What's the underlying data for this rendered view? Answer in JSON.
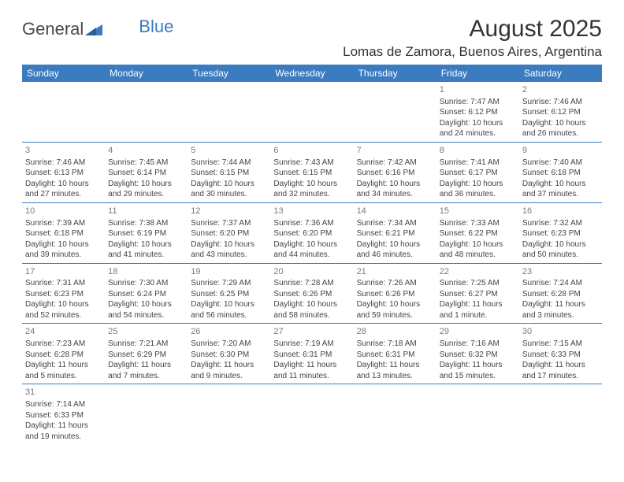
{
  "logo": {
    "textA": "General",
    "textB": "Blue"
  },
  "title": "August 2025",
  "location": "Lomas de Zamora, Buenos Aires, Argentina",
  "colors": {
    "headerBg": "#3b7bbf",
    "text": "#333333",
    "dayNum": "#7a7a7a"
  },
  "weekdays": [
    "Sunday",
    "Monday",
    "Tuesday",
    "Wednesday",
    "Thursday",
    "Friday",
    "Saturday"
  ],
  "startOffset": 5,
  "days": [
    {
      "n": "1",
      "sr": "7:47 AM",
      "ss": "6:12 PM",
      "dl": "10 hours and 24 minutes."
    },
    {
      "n": "2",
      "sr": "7:46 AM",
      "ss": "6:12 PM",
      "dl": "10 hours and 26 minutes."
    },
    {
      "n": "3",
      "sr": "7:46 AM",
      "ss": "6:13 PM",
      "dl": "10 hours and 27 minutes."
    },
    {
      "n": "4",
      "sr": "7:45 AM",
      "ss": "6:14 PM",
      "dl": "10 hours and 29 minutes."
    },
    {
      "n": "5",
      "sr": "7:44 AM",
      "ss": "6:15 PM",
      "dl": "10 hours and 30 minutes."
    },
    {
      "n": "6",
      "sr": "7:43 AM",
      "ss": "6:15 PM",
      "dl": "10 hours and 32 minutes."
    },
    {
      "n": "7",
      "sr": "7:42 AM",
      "ss": "6:16 PM",
      "dl": "10 hours and 34 minutes."
    },
    {
      "n": "8",
      "sr": "7:41 AM",
      "ss": "6:17 PM",
      "dl": "10 hours and 36 minutes."
    },
    {
      "n": "9",
      "sr": "7:40 AM",
      "ss": "6:18 PM",
      "dl": "10 hours and 37 minutes."
    },
    {
      "n": "10",
      "sr": "7:39 AM",
      "ss": "6:18 PM",
      "dl": "10 hours and 39 minutes."
    },
    {
      "n": "11",
      "sr": "7:38 AM",
      "ss": "6:19 PM",
      "dl": "10 hours and 41 minutes."
    },
    {
      "n": "12",
      "sr": "7:37 AM",
      "ss": "6:20 PM",
      "dl": "10 hours and 43 minutes."
    },
    {
      "n": "13",
      "sr": "7:36 AM",
      "ss": "6:20 PM",
      "dl": "10 hours and 44 minutes."
    },
    {
      "n": "14",
      "sr": "7:34 AM",
      "ss": "6:21 PM",
      "dl": "10 hours and 46 minutes."
    },
    {
      "n": "15",
      "sr": "7:33 AM",
      "ss": "6:22 PM",
      "dl": "10 hours and 48 minutes."
    },
    {
      "n": "16",
      "sr": "7:32 AM",
      "ss": "6:23 PM",
      "dl": "10 hours and 50 minutes."
    },
    {
      "n": "17",
      "sr": "7:31 AM",
      "ss": "6:23 PM",
      "dl": "10 hours and 52 minutes."
    },
    {
      "n": "18",
      "sr": "7:30 AM",
      "ss": "6:24 PM",
      "dl": "10 hours and 54 minutes."
    },
    {
      "n": "19",
      "sr": "7:29 AM",
      "ss": "6:25 PM",
      "dl": "10 hours and 56 minutes."
    },
    {
      "n": "20",
      "sr": "7:28 AM",
      "ss": "6:26 PM",
      "dl": "10 hours and 58 minutes."
    },
    {
      "n": "21",
      "sr": "7:26 AM",
      "ss": "6:26 PM",
      "dl": "10 hours and 59 minutes."
    },
    {
      "n": "22",
      "sr": "7:25 AM",
      "ss": "6:27 PM",
      "dl": "11 hours and 1 minute."
    },
    {
      "n": "23",
      "sr": "7:24 AM",
      "ss": "6:28 PM",
      "dl": "11 hours and 3 minutes."
    },
    {
      "n": "24",
      "sr": "7:23 AM",
      "ss": "6:28 PM",
      "dl": "11 hours and 5 minutes."
    },
    {
      "n": "25",
      "sr": "7:21 AM",
      "ss": "6:29 PM",
      "dl": "11 hours and 7 minutes."
    },
    {
      "n": "26",
      "sr": "7:20 AM",
      "ss": "6:30 PM",
      "dl": "11 hours and 9 minutes."
    },
    {
      "n": "27",
      "sr": "7:19 AM",
      "ss": "6:31 PM",
      "dl": "11 hours and 11 minutes."
    },
    {
      "n": "28",
      "sr": "7:18 AM",
      "ss": "6:31 PM",
      "dl": "11 hours and 13 minutes."
    },
    {
      "n": "29",
      "sr": "7:16 AM",
      "ss": "6:32 PM",
      "dl": "11 hours and 15 minutes."
    },
    {
      "n": "30",
      "sr": "7:15 AM",
      "ss": "6:33 PM",
      "dl": "11 hours and 17 minutes."
    },
    {
      "n": "31",
      "sr": "7:14 AM",
      "ss": "6:33 PM",
      "dl": "11 hours and 19 minutes."
    }
  ],
  "labels": {
    "sunrise": "Sunrise: ",
    "sunset": "Sunset: ",
    "daylight": "Daylight: "
  }
}
